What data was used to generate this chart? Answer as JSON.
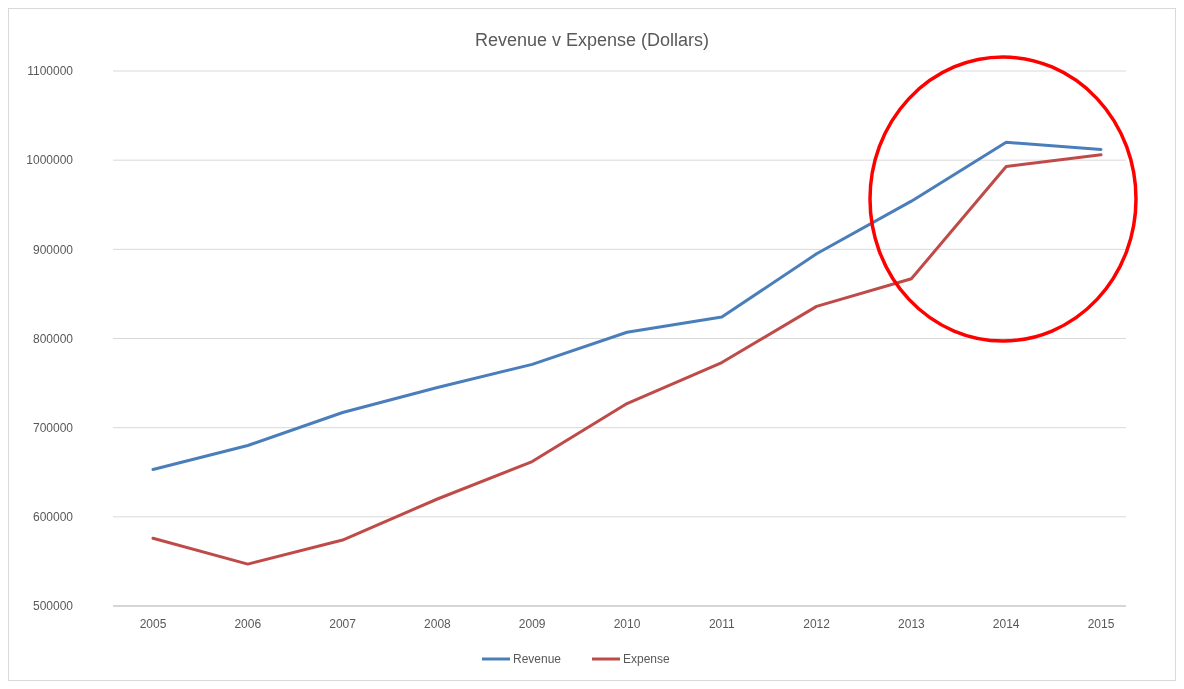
{
  "chart_data": {
    "type": "line",
    "title": "Revenue v Expense (Dollars)",
    "categories": [
      "2005",
      "2006",
      "2007",
      "2008",
      "2009",
      "2010",
      "2011",
      "2012",
      "2013",
      "2014",
      "2015"
    ],
    "series": [
      {
        "name": "Revenue",
        "color": "#4a7ebb",
        "values": [
          653000,
          680000,
          717000,
          745000,
          771000,
          807000,
          824000,
          895000,
          954000,
          1020000,
          1012000
        ]
      },
      {
        "name": "Expense",
        "color": "#be4b48",
        "values": [
          576000,
          547000,
          574000,
          620000,
          662000,
          727000,
          773000,
          836000,
          867000,
          993000,
          1006000
        ]
      }
    ],
    "ylim": [
      500000,
      1100000
    ],
    "yticks": [
      500000,
      600000,
      700000,
      800000,
      900000,
      1000000,
      1100000
    ],
    "grid": "y",
    "legend": "bottom",
    "marker": "none",
    "line_style": "solid"
  }
}
